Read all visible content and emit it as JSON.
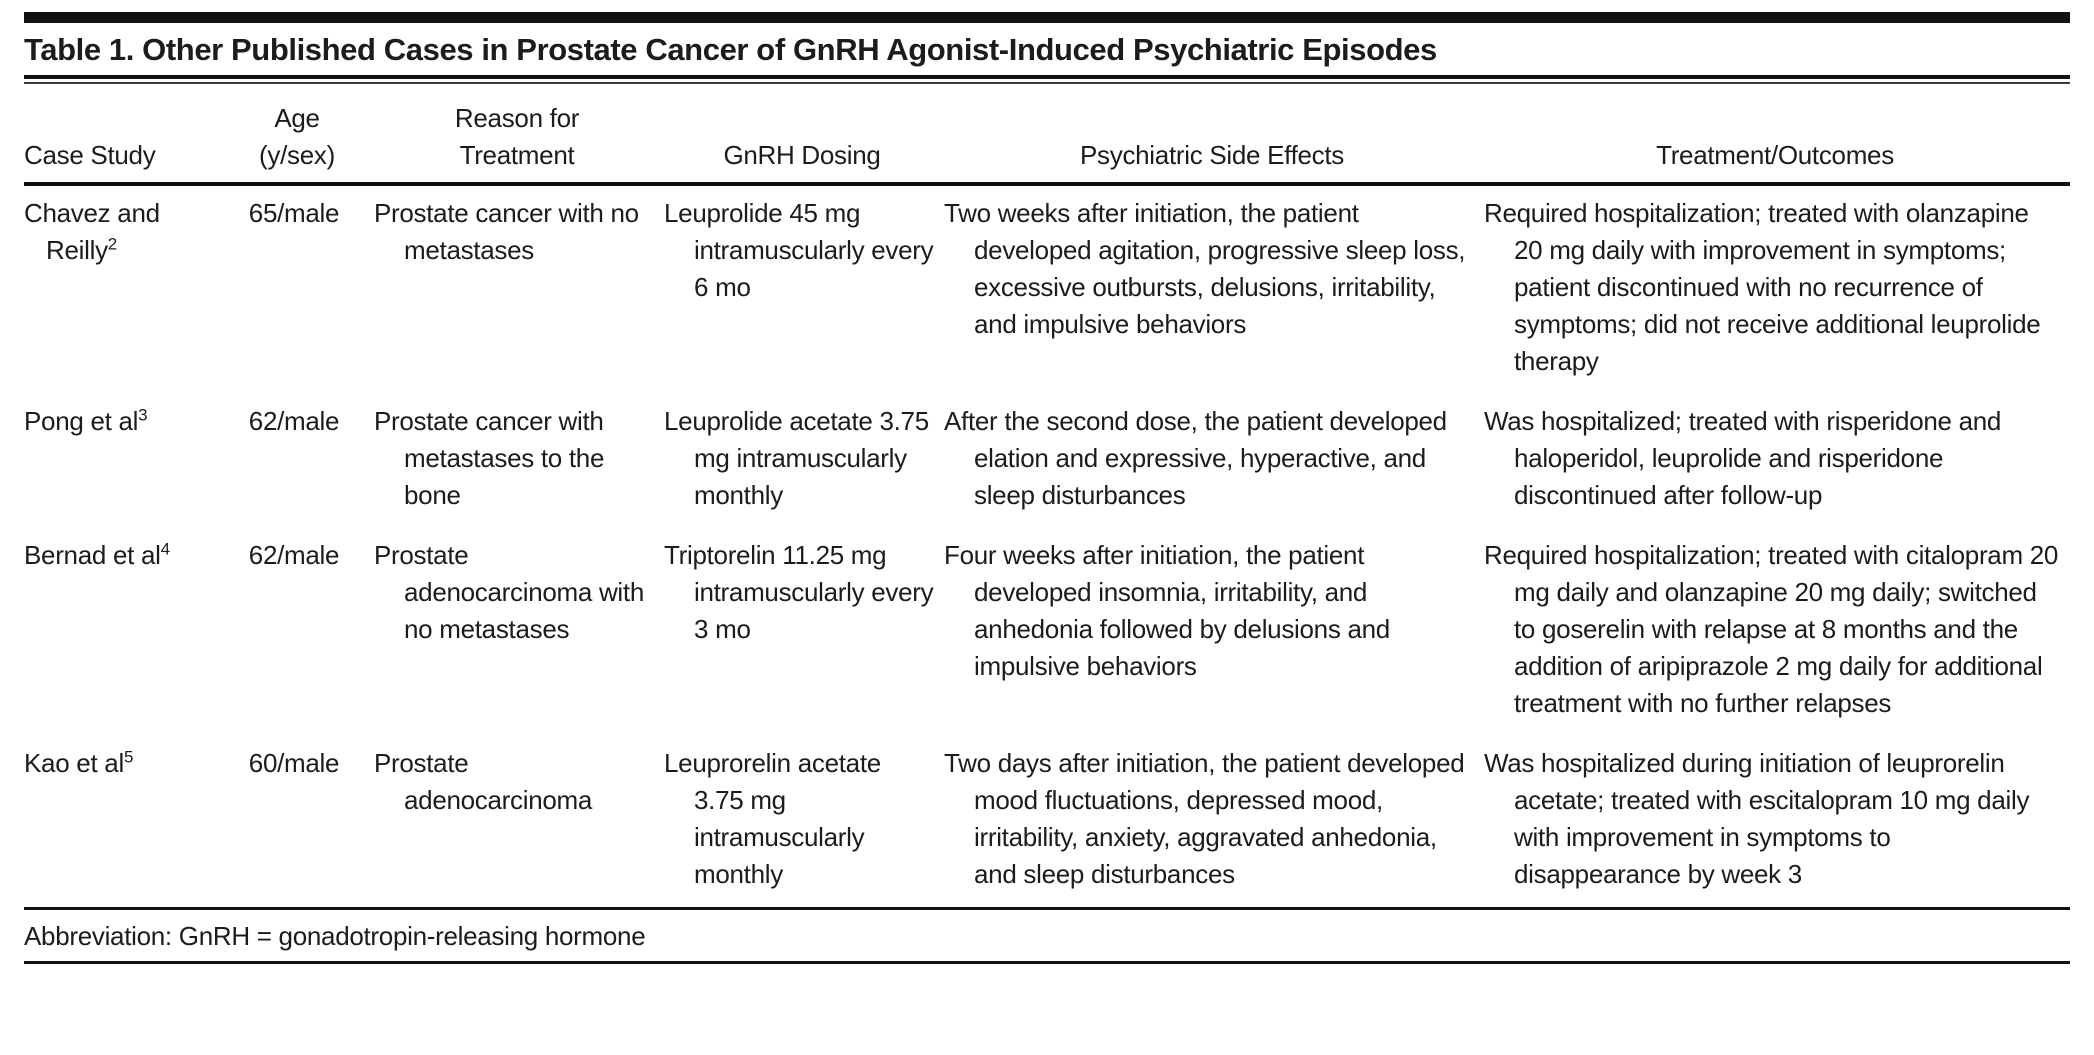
{
  "colors": {
    "background": "#ffffff",
    "text": "#1c1c1c",
    "rule": "#111111"
  },
  "table": {
    "title": "Table 1. Other Published Cases in Prostate Cancer of GnRH Agonist-Induced Psychiatric Episodes",
    "columns": [
      "Case Study",
      "Age (y/sex)",
      "Reason for Treatment",
      "GnRH Dosing",
      "Psychiatric Side Effects",
      "Treatment/Outcomes"
    ],
    "rows": [
      {
        "case_study": "Chavez and Reilly",
        "ref": "2",
        "age_sex": "65/male",
        "reason": "Prostate cancer with no metastases",
        "dosing": "Leuprolide 45 mg intramuscularly every 6 mo",
        "side_effects": "Two weeks after initiation, the patient developed agitation, progressive sleep loss, excessive outbursts, delusions, irritability, and impulsive behaviors",
        "outcomes": "Required hospitalization; treated with olanzapine 20 mg daily with improvement in symptoms; patient discontinued with no recurrence of symptoms; did not receive additional leuprolide therapy"
      },
      {
        "case_study": "Pong et al",
        "ref": "3",
        "age_sex": "62/male",
        "reason": "Prostate cancer with metastases to the bone",
        "dosing": "Leuprolide acetate 3.75 mg intramuscularly monthly",
        "side_effects": "After the second dose, the patient developed elation and expressive, hyperactive, and sleep disturbances",
        "outcomes": "Was hospitalized; treated with risperidone and haloperidol, leuprolide and risperidone discontinued after follow-up"
      },
      {
        "case_study": "Bernad et al",
        "ref": "4",
        "age_sex": "62/male",
        "reason": "Prostate adenocarcinoma with no metastases",
        "dosing": "Triptorelin 11.25 mg intramuscularly every 3 mo",
        "side_effects": "Four weeks after initiation, the patient developed insomnia, irritability, and anhedonia followed by delusions and impulsive behaviors",
        "outcomes": "Required hospitalization; treated with citalopram 20 mg daily and olanzapine 20 mg daily; switched to goserelin with relapse at 8 months and the addition of aripiprazole 2 mg daily for additional treatment with no further relapses"
      },
      {
        "case_study": "Kao et al",
        "ref": "5",
        "age_sex": "60/male",
        "reason": "Prostate adenocarcinoma",
        "dosing": "Leuprorelin acetate 3.75 mg intramuscularly monthly",
        "side_effects": "Two days after initiation, the patient developed mood fluctuations, depressed mood, irritability, anxiety, aggravated anhedonia, and sleep disturbances",
        "outcomes": "Was hospitalized during initiation of leuprorelin acetate; treated with escitalopram 10 mg daily with improvement in symptoms to disappearance by week 3"
      }
    ],
    "footnote": "Abbreviation: GnRH = gonadotropin-releasing hormone"
  }
}
